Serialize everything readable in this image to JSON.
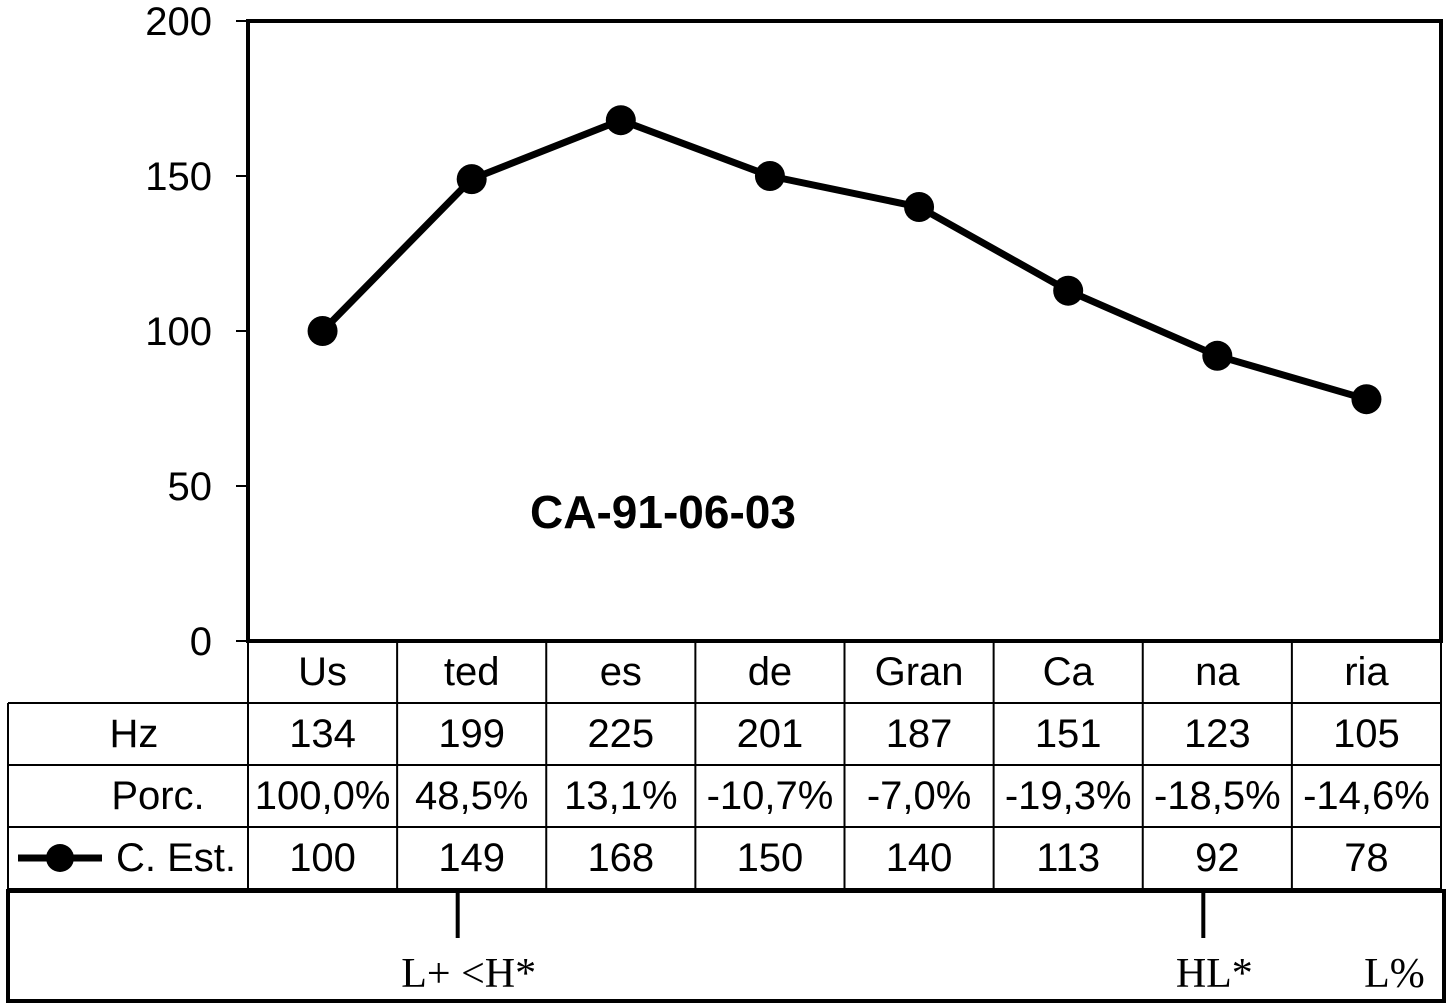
{
  "chart_data": {
    "type": "line",
    "title": "CA-91-06-03",
    "categories": [
      "Us",
      "ted",
      "es",
      "de",
      "Gran",
      "Ca",
      "na",
      "ria"
    ],
    "ylim": [
      0,
      200
    ],
    "yticks": [
      0,
      50,
      100,
      150,
      200
    ],
    "grid": false,
    "series": [
      {
        "name": "C. Est.",
        "values": [
          100,
          149,
          168,
          150,
          140,
          113,
          92,
          78
        ]
      }
    ],
    "table": {
      "rows": [
        {
          "label": "Hz",
          "values": [
            "134",
            "199",
            "225",
            "201",
            "187",
            "151",
            "123",
            "105"
          ]
        },
        {
          "label": "Porc.",
          "values": [
            "100,0%",
            "48,5%",
            "13,1%",
            "-10,7%",
            "-7,0%",
            "-19,3%",
            "-18,5%",
            "-14,6%"
          ]
        },
        {
          "label": "C. Est.",
          "values": [
            "100",
            "149",
            "168",
            "150",
            "140",
            "113",
            "92",
            "78"
          ]
        }
      ]
    },
    "annotations": [
      {
        "text": "L+ <H*",
        "category": "ted"
      },
      {
        "text": "HL*",
        "category": "na"
      },
      {
        "text": "L%",
        "category": "ria"
      }
    ]
  }
}
